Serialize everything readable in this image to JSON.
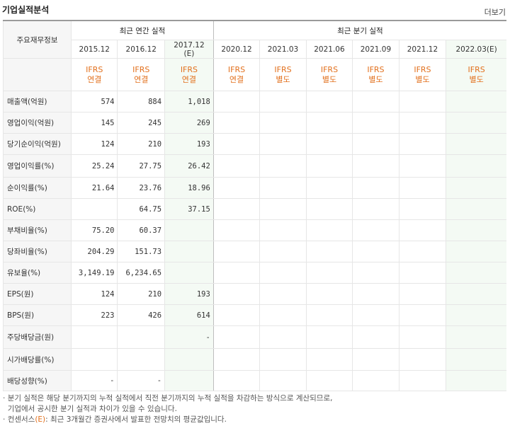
{
  "header": {
    "title": "기업실적분석",
    "more_label": "더보기"
  },
  "table": {
    "row_header_label": "주요재무정보",
    "annual_group": "최근 연간 실적",
    "quarter_group": "최근 분기 실적",
    "years": [
      "2015.12",
      "2016.12",
      "2017.12",
      "2020.12",
      "2021.03",
      "2021.06",
      "2021.09",
      "2021.12",
      "2022.03"
    ],
    "estimate_mark": "(E)",
    "ifrs": [
      [
        "IFRS",
        "연결"
      ],
      [
        "IFRS",
        "연결"
      ],
      [
        "IFRS",
        "연결"
      ],
      [
        "IFRS",
        "연결"
      ],
      [
        "IFRS",
        "별도"
      ],
      [
        "IFRS",
        "별도"
      ],
      [
        "IFRS",
        "별도"
      ],
      [
        "IFRS",
        "별도"
      ],
      [
        "IFRS",
        "별도"
      ]
    ],
    "rows": [
      {
        "label": "매출액(억원)",
        "values": [
          "574",
          "884",
          "1,018"
        ]
      },
      {
        "label": "영업이익(억원)",
        "values": [
          "145",
          "245",
          "269"
        ]
      },
      {
        "label": "당기순이익(억원)",
        "values": [
          "124",
          "210",
          "193"
        ]
      },
      {
        "label": "영업이익률(%)",
        "values": [
          "25.24",
          "27.75",
          "26.42"
        ]
      },
      {
        "label": "순이익률(%)",
        "values": [
          "21.64",
          "23.76",
          "18.96"
        ]
      },
      {
        "label": "ROE(%)",
        "values": [
          "",
          "64.75",
          "37.15"
        ]
      },
      {
        "label": "부채비율(%)",
        "values": [
          "75.20",
          "60.37",
          ""
        ]
      },
      {
        "label": "당좌비율(%)",
        "values": [
          "204.29",
          "151.73",
          ""
        ]
      },
      {
        "label": "유보율(%)",
        "values": [
          "3,149.19",
          "6,234.65",
          ""
        ]
      },
      {
        "label": "EPS(원)",
        "values": [
          "124",
          "210",
          "193"
        ]
      },
      {
        "label": "BPS(원)",
        "values": [
          "223",
          "426",
          "614"
        ]
      },
      {
        "label": "주당배당금(원)",
        "values": [
          "",
          "",
          "-"
        ]
      },
      {
        "label": "시가배당률(%)",
        "values": [
          "",
          "",
          ""
        ]
      },
      {
        "label": "배당성향(%)",
        "values": [
          "-",
          "-",
          ""
        ]
      }
    ]
  },
  "notes": {
    "line1": "분기 실적은 해당 분기까지의 누적 실적에서 직전 분기까지의 누적 실적을 차감하는 방식으로 계산되므로,",
    "line2": "기업에서 공시한 분기 실적과 차이가 있을 수 있습니다.",
    "line3_prefix": "컨센서스",
    "line3_mark": "(E)",
    "line3_suffix": ": 최근 3개월간 증권사에서 발표한 전망치의 평균값입니다."
  }
}
